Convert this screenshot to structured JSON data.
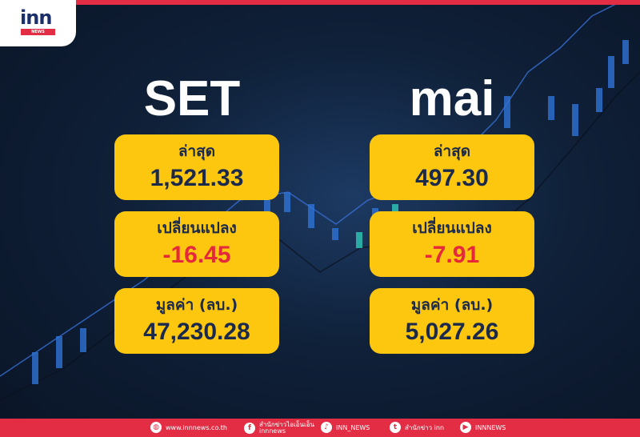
{
  "logo": {
    "text": "inn",
    "sub": "NEWS"
  },
  "set": {
    "title": "SET",
    "items": [
      {
        "label": "ล่าสุด",
        "value": "1,521.33"
      },
      {
        "label": "เปลี่ยนแปลง",
        "value": "-16.45"
      },
      {
        "label": "มูลค่า (ลบ.)",
        "value": "47,230.28"
      }
    ]
  },
  "mai": {
    "title": "mai",
    "items": [
      {
        "label": "ล่าสุด",
        "value": "497.30"
      },
      {
        "label": "เปลี่ยนแปลง",
        "value": "-7.91"
      },
      {
        "label": "มูลค่า (ลบ.)",
        "value": "5,027.26"
      }
    ]
  },
  "colors": {
    "accent": "#e22d45",
    "box": "#fdc60f",
    "negative": "#e5283a"
  },
  "footer": {
    "website": "www.innnews.co.th",
    "facebook_line1": "สำนักข่าวไอเอ็นเอ็น",
    "facebook_line2": "innnews",
    "tiktok": "INN_NEWS",
    "twitter": "สำนักข่าว inn",
    "youtube": "INNNEWS"
  }
}
